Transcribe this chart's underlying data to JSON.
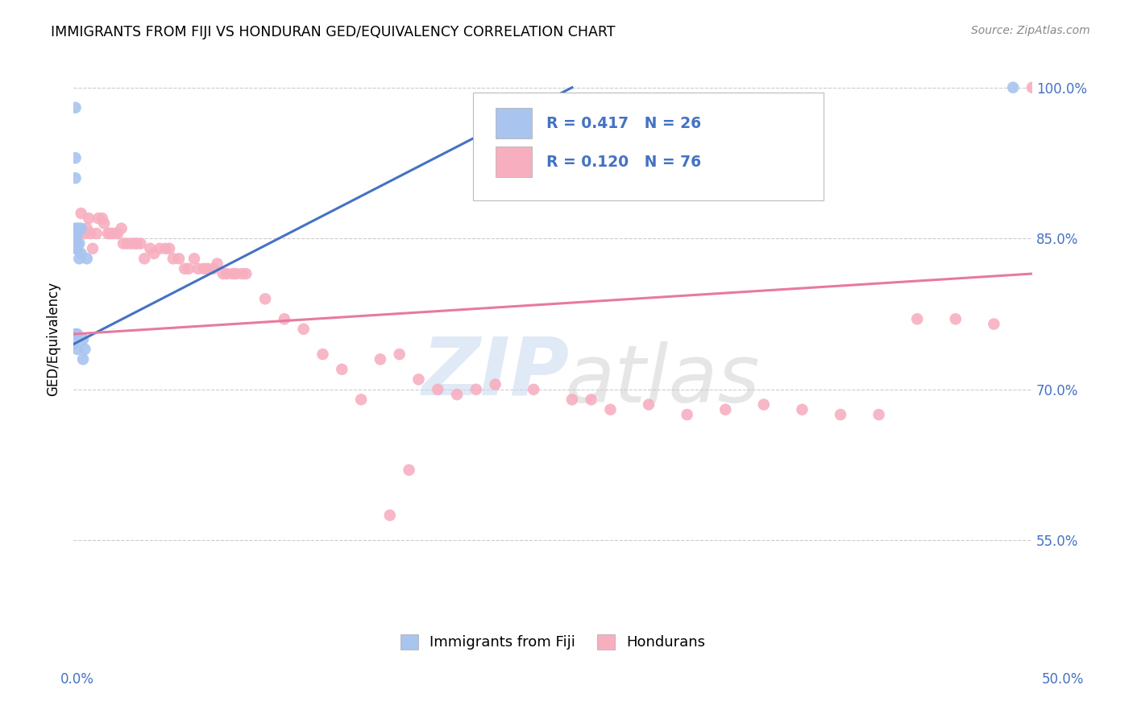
{
  "title": "IMMIGRANTS FROM FIJI VS HONDURAN GED/EQUIVALENCY CORRELATION CHART",
  "source": "Source: ZipAtlas.com",
  "ylabel": "GED/Equivalency",
  "legend_fiji_R": "0.417",
  "legend_fiji_N": "26",
  "legend_honduran_R": "0.120",
  "legend_honduran_N": "76",
  "fiji_color": "#a8c4ef",
  "honduran_color": "#f7afc0",
  "fiji_line_color": "#4472c4",
  "honduran_line_color": "#e879a0",
  "legend_text_color": "#4472c4",
  "fiji_scatter_x": [
    0.0,
    0.001,
    0.001,
    0.001,
    0.001,
    0.001,
    0.001,
    0.001,
    0.001,
    0.002,
    0.002,
    0.002,
    0.002,
    0.002,
    0.002,
    0.003,
    0.003,
    0.003,
    0.004,
    0.004,
    0.005,
    0.005,
    0.006,
    0.007,
    0.24,
    0.49
  ],
  "fiji_scatter_y": [
    0.745,
    0.98,
    0.93,
    0.91,
    0.86,
    0.85,
    0.845,
    0.84,
    0.755,
    0.86,
    0.855,
    0.845,
    0.84,
    0.755,
    0.74,
    0.86,
    0.845,
    0.83,
    0.86,
    0.835,
    0.75,
    0.73,
    0.74,
    0.83,
    0.98,
    1.0
  ],
  "honduran_scatter_x": [
    0.002,
    0.003,
    0.004,
    0.006,
    0.007,
    0.008,
    0.009,
    0.01,
    0.012,
    0.013,
    0.015,
    0.016,
    0.018,
    0.019,
    0.02,
    0.022,
    0.023,
    0.025,
    0.026,
    0.028,
    0.03,
    0.032,
    0.033,
    0.035,
    0.037,
    0.04,
    0.042,
    0.045,
    0.048,
    0.05,
    0.052,
    0.055,
    0.058,
    0.06,
    0.063,
    0.065,
    0.068,
    0.07,
    0.073,
    0.075,
    0.078,
    0.08,
    0.083,
    0.085,
    0.088,
    0.09,
    0.1,
    0.11,
    0.12,
    0.13,
    0.14,
    0.15,
    0.16,
    0.17,
    0.18,
    0.19,
    0.2,
    0.21,
    0.22,
    0.24,
    0.26,
    0.27,
    0.28,
    0.3,
    0.32,
    0.34,
    0.36,
    0.38,
    0.4,
    0.42,
    0.44,
    0.46,
    0.48,
    0.165,
    0.175,
    0.5
  ],
  "honduran_scatter_y": [
    0.84,
    0.855,
    0.875,
    0.855,
    0.86,
    0.87,
    0.855,
    0.84,
    0.855,
    0.87,
    0.87,
    0.865,
    0.855,
    0.855,
    0.855,
    0.855,
    0.855,
    0.86,
    0.845,
    0.845,
    0.845,
    0.845,
    0.845,
    0.845,
    0.83,
    0.84,
    0.835,
    0.84,
    0.84,
    0.84,
    0.83,
    0.83,
    0.82,
    0.82,
    0.83,
    0.82,
    0.82,
    0.82,
    0.82,
    0.825,
    0.815,
    0.815,
    0.815,
    0.815,
    0.815,
    0.815,
    0.79,
    0.77,
    0.76,
    0.735,
    0.72,
    0.69,
    0.73,
    0.735,
    0.71,
    0.7,
    0.695,
    0.7,
    0.705,
    0.7,
    0.69,
    0.69,
    0.68,
    0.685,
    0.675,
    0.68,
    0.685,
    0.68,
    0.675,
    0.675,
    0.77,
    0.77,
    0.765,
    0.575,
    0.62,
    1.0
  ],
  "fiji_line_x0": 0.0,
  "fiji_line_y0": 0.745,
  "fiji_line_x1": 0.26,
  "fiji_line_y1": 1.0,
  "honduran_line_x0": 0.0,
  "honduran_line_y0": 0.755,
  "honduran_line_x1": 0.5,
  "honduran_line_y1": 0.815,
  "xmin": 0.0,
  "xmax": 0.5,
  "ymin": 0.475,
  "ymax": 1.025,
  "yticks": [
    1.0,
    0.85,
    0.7,
    0.55
  ],
  "ytick_labels": [
    "100.0%",
    "85.0%",
    "70.0%",
    "55.0%"
  ]
}
